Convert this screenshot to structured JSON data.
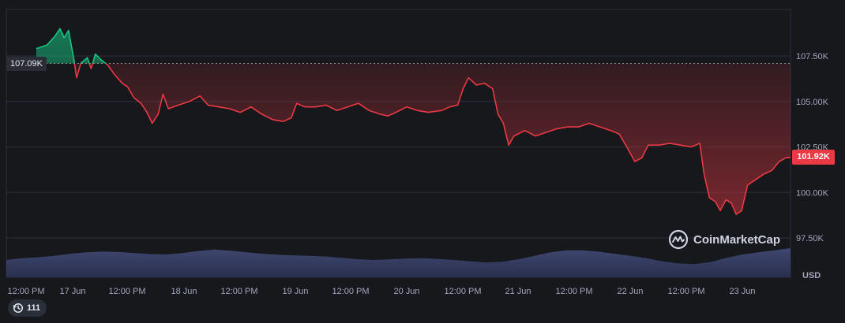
{
  "chart_data": {
    "type": "line",
    "currency": "USD",
    "reference_price_label": "107.09K",
    "reference_price": 107090,
    "current_price_label": "101.92K",
    "current_price": 101920,
    "ylim": [
      96500,
      109500
    ],
    "y_ticks": [
      {
        "value": 107500,
        "label": "107.50K"
      },
      {
        "value": 105000,
        "label": "105.00K"
      },
      {
        "value": 102500,
        "label": "102.50K"
      },
      {
        "value": 100000,
        "label": "100.00K"
      },
      {
        "value": 97500,
        "label": "97.50K"
      }
    ],
    "x_ticks": [
      "12:00 PM",
      "17 Jun",
      "12:00 PM",
      "18 Jun",
      "12:00 PM",
      "19 Jun",
      "12:00 PM",
      "20 Jun",
      "12:00 PM",
      "21 Jun",
      "12:00 PM",
      "22 Jun",
      "12:00 PM",
      "23 Jun"
    ],
    "series": [
      {
        "values": [
          [
            0.0,
            107900
          ],
          [
            2.0,
            108100
          ],
          [
            3.5,
            108600
          ],
          [
            4.4,
            109000
          ],
          [
            5.2,
            108500
          ],
          [
            6.0,
            108900
          ],
          [
            7.0,
            107300
          ],
          [
            7.5,
            106300
          ],
          [
            8.3,
            107100
          ],
          [
            9.5,
            107400
          ],
          [
            10.2,
            106800
          ],
          [
            11.0,
            107600
          ],
          [
            12.0,
            107300
          ],
          [
            13.3,
            107000
          ],
          [
            14.5,
            106500
          ],
          [
            16.0,
            106000
          ],
          [
            17.0,
            105800
          ],
          [
            18.2,
            105200
          ],
          [
            19.5,
            104900
          ],
          [
            20.6,
            104400
          ],
          [
            21.6,
            103800
          ],
          [
            22.7,
            104300
          ],
          [
            23.6,
            105400
          ],
          [
            24.6,
            104600
          ],
          [
            26.5,
            104800
          ],
          [
            28.5,
            105000
          ],
          [
            30.5,
            105300
          ],
          [
            32.0,
            104800
          ],
          [
            34.0,
            104700
          ],
          [
            36.0,
            104600
          ],
          [
            38.0,
            104400
          ],
          [
            40.0,
            104700
          ],
          [
            42.0,
            104300
          ],
          [
            44.0,
            104000
          ],
          [
            46.0,
            103900
          ],
          [
            47.5,
            104100
          ],
          [
            48.5,
            104900
          ],
          [
            50.0,
            104700
          ],
          [
            52.0,
            104700
          ],
          [
            54.0,
            104800
          ],
          [
            56.0,
            104500
          ],
          [
            58.0,
            104700
          ],
          [
            60.0,
            104900
          ],
          [
            62.0,
            104500
          ],
          [
            64.0,
            104300
          ],
          [
            65.5,
            104200
          ],
          [
            67.0,
            104400
          ],
          [
            69.0,
            104700
          ],
          [
            71.0,
            104500
          ],
          [
            73.0,
            104400
          ],
          [
            75.5,
            104500
          ],
          [
            77.0,
            104700
          ],
          [
            78.5,
            104800
          ],
          [
            79.5,
            105700
          ],
          [
            80.5,
            106300
          ],
          [
            82.0,
            105900
          ],
          [
            83.5,
            106000
          ],
          [
            85.0,
            105700
          ],
          [
            86.0,
            104300
          ],
          [
            87.0,
            103800
          ],
          [
            88.0,
            102600
          ],
          [
            89.0,
            103100
          ],
          [
            91.0,
            103400
          ],
          [
            93.0,
            103100
          ],
          [
            95.0,
            103300
          ],
          [
            97.0,
            103500
          ],
          [
            99.0,
            103600
          ],
          [
            101.0,
            103600
          ],
          [
            103.0,
            103800
          ],
          [
            105.0,
            103600
          ],
          [
            107.0,
            103400
          ],
          [
            108.6,
            103200
          ],
          [
            110.0,
            102500
          ],
          [
            111.5,
            101700
          ],
          [
            112.8,
            101900
          ],
          [
            114.0,
            102600
          ],
          [
            116.0,
            102600
          ],
          [
            118.0,
            102700
          ],
          [
            120.0,
            102600
          ],
          [
            122.0,
            102500
          ],
          [
            123.6,
            102700
          ],
          [
            124.4,
            101000
          ],
          [
            125.4,
            99700
          ],
          [
            126.5,
            99500
          ],
          [
            127.4,
            99000
          ],
          [
            128.5,
            99600
          ],
          [
            129.5,
            99400
          ],
          [
            130.4,
            98800
          ],
          [
            131.4,
            99000
          ],
          [
            132.5,
            100400
          ],
          [
            134.0,
            100700
          ],
          [
            135.5,
            101000
          ],
          [
            137.0,
            101200
          ],
          [
            138.4,
            101700
          ],
          [
            139.6,
            101900
          ],
          [
            140.5,
            101920
          ]
        ]
      }
    ],
    "volume": [
      0.5,
      0.55,
      0.58,
      0.62,
      0.68,
      0.72,
      0.74,
      0.73,
      0.7,
      0.67,
      0.66,
      0.7,
      0.76,
      0.8,
      0.77,
      0.72,
      0.68,
      0.65,
      0.63,
      0.62,
      0.6,
      0.56,
      0.52,
      0.5,
      0.52,
      0.54,
      0.55,
      0.53,
      0.5,
      0.46,
      0.43,
      0.45,
      0.52,
      0.62,
      0.72,
      0.78,
      0.78,
      0.74,
      0.68,
      0.62,
      0.55,
      0.46,
      0.4,
      0.38,
      0.44,
      0.56,
      0.66,
      0.72,
      0.78,
      0.84
    ]
  },
  "watermark": {
    "text": "CoinMarketCap"
  },
  "events_badge": {
    "count": "111"
  },
  "colors": {
    "up": "#16c784",
    "down": "#ea3943",
    "volume": "#3b4266",
    "grid": "#2b2f38"
  }
}
